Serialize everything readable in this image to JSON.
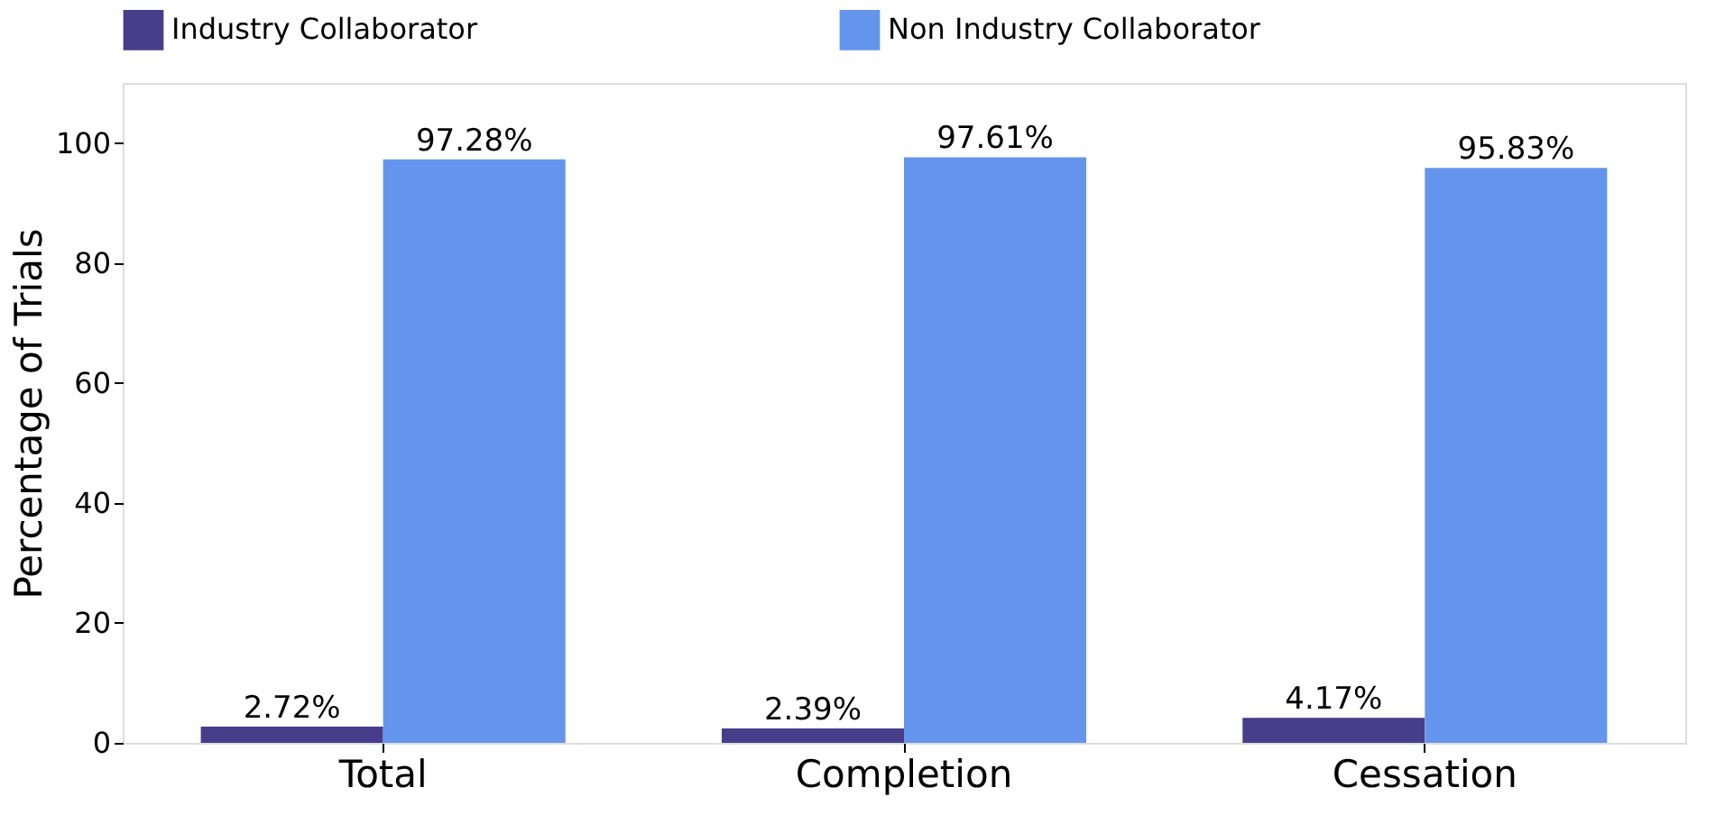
{
  "chart_data": {
    "type": "bar",
    "ylabel": "Percentage of Trials",
    "categories": [
      "Total",
      "Completion",
      "Cessation"
    ],
    "series": [
      {
        "name": "Industry Collaborator",
        "color": "#483d8b",
        "values": [
          2.72,
          2.39,
          4.17
        ],
        "value_labels": [
          "2.72%",
          "2.39%",
          "4.17%"
        ]
      },
      {
        "name": "Non Industry Collaborator",
        "color": "#6495ed",
        "values": [
          97.28,
          97.61,
          95.83
        ],
        "value_labels": [
          "97.28%",
          "97.61%",
          "95.83%"
        ]
      }
    ],
    "ylim": [
      0,
      110
    ],
    "yticks": [
      0,
      20,
      40,
      60,
      80,
      100
    ],
    "grid": false,
    "legend": "top"
  }
}
